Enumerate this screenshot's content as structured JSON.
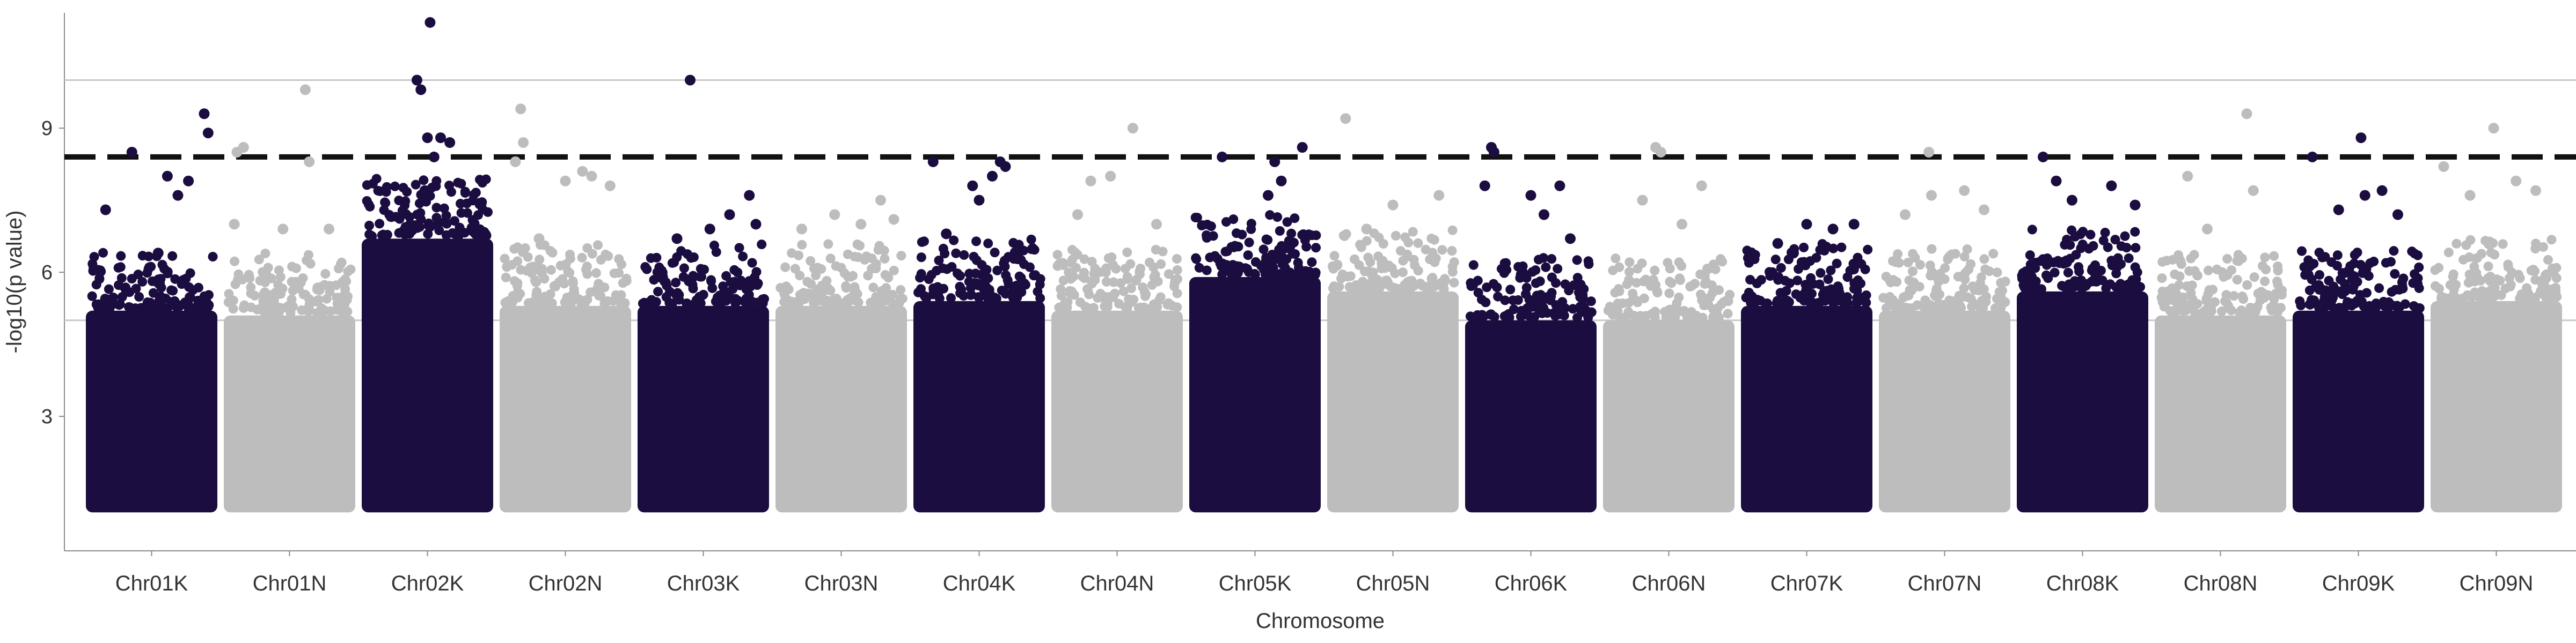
{
  "chart_data": {
    "type": "scatter",
    "subtype": "manhattan",
    "title": "",
    "xlabel": "Chromosome",
    "ylabel": "-log10(p value)",
    "ylim": [
      0.2,
      11.4
    ],
    "yticks": [
      3,
      6,
      9
    ],
    "grid": "off",
    "legend": "none",
    "reference_lines": [
      {
        "type": "solid",
        "y": 10.0,
        "color": "#c8c8c8"
      },
      {
        "type": "dashed",
        "y": 8.4,
        "color": "#111111"
      },
      {
        "type": "solid",
        "y": 5.0,
        "color": "#c8c8c8"
      }
    ],
    "colors": {
      "odd": "#1b0d40",
      "even": "#bdbdbd"
    },
    "baseline": 1.0,
    "categories": [
      "Chr01K",
      "Chr01N",
      "Chr02K",
      "Chr02N",
      "Chr03K",
      "Chr03N",
      "Chr04K",
      "Chr04N",
      "Chr05K",
      "Chr05N",
      "Chr06K",
      "Chr06N",
      "Chr07K",
      "Chr07N",
      "Chr08K",
      "Chr08N",
      "Chr09K",
      "Chr09N"
    ],
    "series": [
      {
        "category": "Chr01K",
        "dense_top": 5.2,
        "max": 9.3,
        "highlights": [
          [
            0.15,
            7.3
          ],
          [
            0.35,
            8.5
          ],
          [
            0.62,
            8.0
          ],
          [
            0.78,
            7.9
          ],
          [
            0.9,
            9.3
          ],
          [
            0.93,
            8.9
          ],
          [
            0.55,
            6.4
          ],
          [
            0.7,
            7.6
          ]
        ]
      },
      {
        "category": "Chr01N",
        "dense_top": 5.1,
        "max": 9.8,
        "highlights": [
          [
            0.1,
            8.5
          ],
          [
            0.15,
            8.6
          ],
          [
            0.62,
            9.8
          ],
          [
            0.65,
            8.3
          ],
          [
            0.08,
            7.0
          ],
          [
            0.45,
            6.9
          ],
          [
            0.8,
            6.9
          ]
        ]
      },
      {
        "category": "Chr02K",
        "dense_top": 6.7,
        "max": 11.2,
        "highlights": [
          [
            0.42,
            10.0
          ],
          [
            0.45,
            9.8
          ],
          [
            0.52,
            11.2
          ],
          [
            0.6,
            8.8
          ],
          [
            0.67,
            8.7
          ],
          [
            0.5,
            8.8
          ],
          [
            0.55,
            8.4
          ],
          [
            0.48,
            7.7
          ],
          [
            0.35,
            6.9
          ]
        ]
      },
      {
        "category": "Chr02N",
        "dense_top": 5.3,
        "max": 9.4,
        "highlights": [
          [
            0.12,
            8.3
          ],
          [
            0.16,
            9.4
          ],
          [
            0.18,
            8.7
          ],
          [
            0.5,
            7.9
          ],
          [
            0.63,
            8.1
          ],
          [
            0.7,
            8.0
          ],
          [
            0.84,
            7.8
          ],
          [
            0.3,
            6.7
          ]
        ]
      },
      {
        "category": "Chr03K",
        "dense_top": 5.3,
        "max": 10.0,
        "highlights": [
          [
            0.4,
            10.0
          ],
          [
            0.7,
            7.2
          ],
          [
            0.85,
            7.6
          ],
          [
            0.55,
            6.9
          ],
          [
            0.3,
            6.7
          ],
          [
            0.9,
            7.0
          ]
        ]
      },
      {
        "category": "Chr03N",
        "dense_top": 5.3,
        "max": 7.5,
        "highlights": [
          [
            0.2,
            6.9
          ],
          [
            0.45,
            7.2
          ],
          [
            0.65,
            7.0
          ],
          [
            0.8,
            7.5
          ],
          [
            0.9,
            7.1
          ]
        ]
      },
      {
        "category": "Chr04K",
        "dense_top": 5.4,
        "max": 8.3,
        "highlights": [
          [
            0.15,
            8.3
          ],
          [
            0.45,
            7.8
          ],
          [
            0.6,
            8.0
          ],
          [
            0.66,
            8.3
          ],
          [
            0.7,
            8.2
          ],
          [
            0.5,
            7.5
          ],
          [
            0.25,
            6.8
          ]
        ]
      },
      {
        "category": "Chr04N",
        "dense_top": 5.2,
        "max": 9.0,
        "highlights": [
          [
            0.3,
            7.9
          ],
          [
            0.45,
            8.0
          ],
          [
            0.62,
            9.0
          ],
          [
            0.2,
            7.2
          ],
          [
            0.8,
            7.0
          ]
        ]
      },
      {
        "category": "Chr05K",
        "dense_top": 5.9,
        "max": 8.6,
        "highlights": [
          [
            0.25,
            8.4
          ],
          [
            0.65,
            8.3
          ],
          [
            0.86,
            8.6
          ],
          [
            0.7,
            7.9
          ],
          [
            0.6,
            7.6
          ]
        ]
      },
      {
        "category": "Chr05N",
        "dense_top": 5.6,
        "max": 9.2,
        "highlights": [
          [
            0.14,
            9.2
          ],
          [
            0.5,
            7.4
          ],
          [
            0.85,
            7.6
          ],
          [
            0.3,
            6.9
          ]
        ]
      },
      {
        "category": "Chr06K",
        "dense_top": 5.0,
        "max": 8.6,
        "highlights": [
          [
            0.2,
            8.6
          ],
          [
            0.22,
            8.5
          ],
          [
            0.15,
            7.8
          ],
          [
            0.5,
            7.6
          ],
          [
            0.72,
            7.8
          ],
          [
            0.6,
            7.2
          ],
          [
            0.8,
            6.7
          ]
        ]
      },
      {
        "category": "Chr06N",
        "dense_top": 5.0,
        "max": 8.6,
        "highlights": [
          [
            0.4,
            8.6
          ],
          [
            0.44,
            8.5
          ],
          [
            0.3,
            7.5
          ],
          [
            0.75,
            7.8
          ],
          [
            0.6,
            7.0
          ]
        ]
      },
      {
        "category": "Chr07K",
        "dense_top": 5.3,
        "max": 7.0,
        "highlights": [
          [
            0.28,
            6.6
          ],
          [
            0.5,
            7.0
          ],
          [
            0.7,
            6.9
          ],
          [
            0.86,
            7.0
          ],
          [
            0.4,
            6.4
          ]
        ]
      },
      {
        "category": "Chr07N",
        "dense_top": 5.2,
        "max": 8.5,
        "highlights": [
          [
            0.38,
            8.5
          ],
          [
            0.4,
            7.6
          ],
          [
            0.65,
            7.7
          ],
          [
            0.2,
            7.2
          ],
          [
            0.8,
            7.3
          ]
        ]
      },
      {
        "category": "Chr08K",
        "dense_top": 5.6,
        "max": 8.4,
        "highlights": [
          [
            0.2,
            8.4
          ],
          [
            0.3,
            7.9
          ],
          [
            0.42,
            7.5
          ],
          [
            0.72,
            7.8
          ],
          [
            0.9,
            7.4
          ]
        ]
      },
      {
        "category": "Chr08N",
        "dense_top": 5.1,
        "max": 9.3,
        "highlights": [
          [
            0.25,
            8.0
          ],
          [
            0.7,
            9.3
          ],
          [
            0.75,
            7.7
          ],
          [
            0.4,
            6.9
          ]
        ]
      },
      {
        "category": "Chr09K",
        "dense_top": 5.2,
        "max": 8.8,
        "highlights": [
          [
            0.15,
            8.4
          ],
          [
            0.35,
            7.3
          ],
          [
            0.55,
            7.6
          ],
          [
            0.68,
            7.7
          ],
          [
            0.52,
            8.8
          ],
          [
            0.8,
            7.2
          ]
        ]
      },
      {
        "category": "Chr09N",
        "dense_top": 5.4,
        "max": 9.0,
        "highlights": [
          [
            0.1,
            8.2
          ],
          [
            0.3,
            7.6
          ],
          [
            0.48,
            9.0
          ],
          [
            0.65,
            7.9
          ],
          [
            0.8,
            7.7
          ]
        ]
      }
    ]
  }
}
